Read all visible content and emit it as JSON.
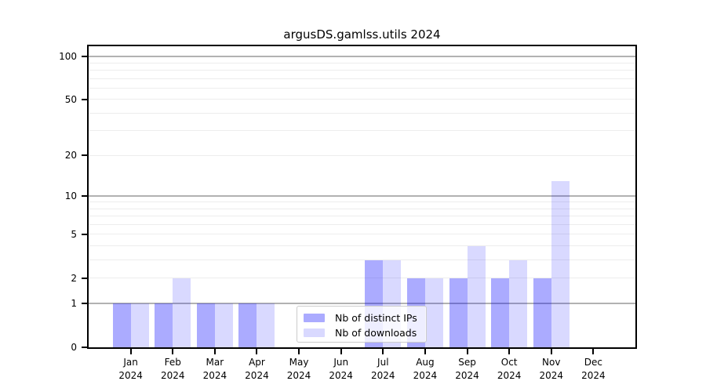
{
  "title": "argusDS.gamlss.utils 2024",
  "chart_data": {
    "type": "bar",
    "title": "argusDS.gamlss.utils 2024",
    "x_categories_month": [
      "Jan",
      "Feb",
      "Mar",
      "Apr",
      "May",
      "Jun",
      "Jul",
      "Aug",
      "Sep",
      "Oct",
      "Nov",
      "Dec"
    ],
    "x_year": "2024",
    "series": [
      {
        "name": "Nb of distinct IPs",
        "color": "#0000ff",
        "alpha": 0.33,
        "values": [
          1,
          1,
          1,
          1,
          0,
          0,
          3,
          2,
          2,
          2,
          2,
          0
        ]
      },
      {
        "name": "Nb of downloads",
        "color": "#0000ff",
        "alpha": 0.15,
        "values": [
          1,
          2,
          1,
          1,
          0,
          0,
          3,
          2,
          4,
          3,
          13,
          0
        ]
      }
    ],
    "yscale": "log1p",
    "ylim": [
      0,
      117.6
    ],
    "ytick_labels": [
      0,
      1,
      2,
      5,
      10,
      20,
      50,
      100
    ],
    "major_gridlines": [
      1,
      10,
      100
    ],
    "minor_gridlines": [
      2,
      3,
      4,
      5,
      6,
      7,
      8,
      9,
      20,
      30,
      40,
      50,
      60,
      70,
      80,
      90
    ],
    "grid": true,
    "legend_position": "inside lower center-left",
    "xlabel": "",
    "ylabel": ""
  },
  "colors": {
    "bar_distinct_ips_rendered": "#aaaaff",
    "bar_downloads_rendered": "#d9d9ff",
    "major_grid": "#b2b2b2",
    "minor_grid": "#ededed",
    "axis": "#000000",
    "background": "#ffffff",
    "legend_border": "#cccccc"
  }
}
